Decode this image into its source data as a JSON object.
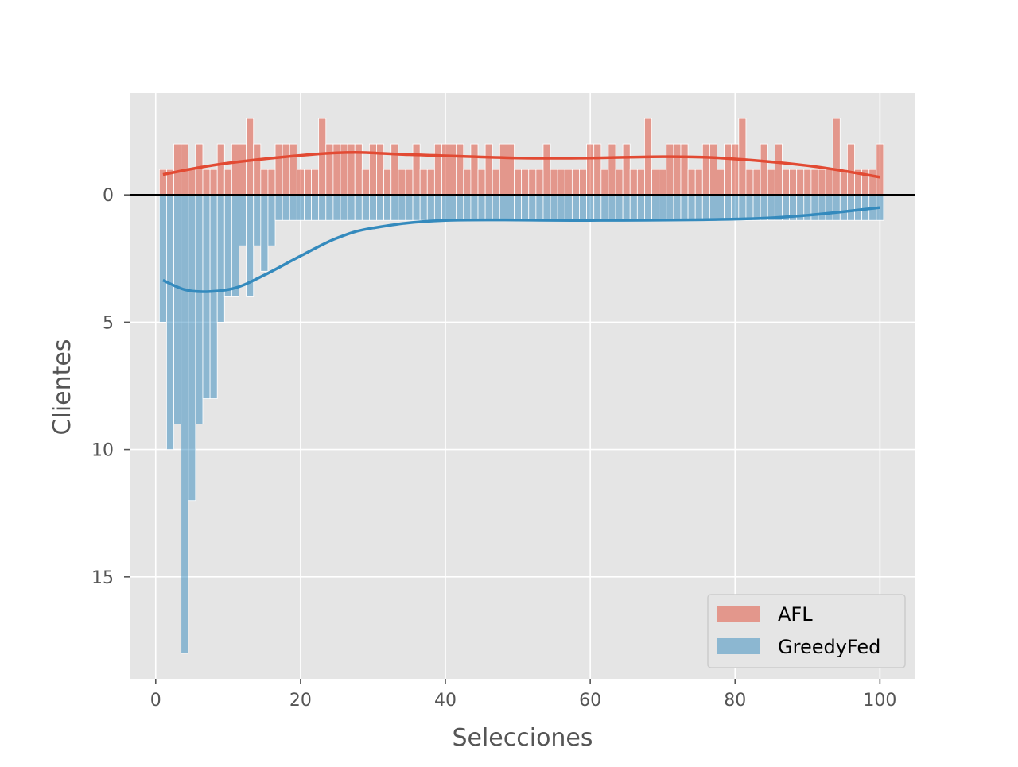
{
  "chart_data": {
    "type": "bar",
    "xlabel": "Selecciones",
    "ylabel": "Clientes",
    "xlim": [
      -3.6,
      104.9
    ],
    "ylim": [
      19.0,
      -4.0
    ],
    "xticks": [
      0,
      20,
      40,
      60,
      80,
      100
    ],
    "yticks": [
      0,
      5,
      10,
      15
    ],
    "tick_labels_x": [
      "0",
      "20",
      "40",
      "60",
      "80",
      "100"
    ],
    "tick_labels_y": [
      "0",
      "5",
      "10",
      "15"
    ],
    "grid": true,
    "legend": "bottom-right",
    "baseline": 0,
    "bin_width": 1,
    "x": [
      1,
      2,
      3,
      4,
      5,
      6,
      7,
      8,
      9,
      10,
      11,
      12,
      13,
      14,
      15,
      16,
      17,
      18,
      19,
      20,
      21,
      22,
      23,
      24,
      25,
      26,
      27,
      28,
      29,
      30,
      31,
      32,
      33,
      34,
      35,
      36,
      37,
      38,
      39,
      40,
      41,
      42,
      43,
      44,
      45,
      46,
      47,
      48,
      49,
      50,
      51,
      52,
      53,
      54,
      55,
      56,
      57,
      58,
      59,
      60,
      61,
      62,
      63,
      64,
      65,
      66,
      67,
      68,
      69,
      70,
      71,
      72,
      73,
      74,
      75,
      76,
      77,
      78,
      79,
      80,
      81,
      82,
      83,
      84,
      85,
      86,
      87,
      88,
      89,
      90,
      91,
      92,
      93,
      94,
      95,
      96,
      97,
      98,
      99,
      100
    ],
    "series": [
      {
        "name": "AFL",
        "direction": "up",
        "color": "#E24A33",
        "values": [
          1,
          1,
          2,
          2,
          1,
          2,
          1,
          1,
          2,
          1,
          2,
          2,
          3,
          2,
          1,
          1,
          2,
          2,
          2,
          1,
          1,
          1,
          3,
          2,
          2,
          2,
          2,
          2,
          1,
          2,
          2,
          1,
          2,
          1,
          1,
          2,
          1,
          1,
          2,
          2,
          2,
          2,
          1,
          2,
          1,
          2,
          1,
          2,
          2,
          1,
          1,
          1,
          1,
          2,
          1,
          1,
          1,
          1,
          1,
          2,
          2,
          1,
          2,
          1,
          2,
          1,
          1,
          3,
          1,
          1,
          2,
          2,
          2,
          1,
          1,
          2,
          2,
          1,
          2,
          2,
          3,
          1,
          1,
          2,
          1,
          2,
          1,
          1,
          1,
          1,
          1,
          1,
          1,
          3,
          1,
          2,
          1,
          1,
          1,
          2
        ],
        "kde": [
          [
            1,
            0.8
          ],
          [
            10,
            1.25
          ],
          [
            25,
            1.65
          ],
          [
            35,
            1.58
          ],
          [
            50,
            1.45
          ],
          [
            60,
            1.45
          ],
          [
            70,
            1.5
          ],
          [
            78,
            1.45
          ],
          [
            90,
            1.15
          ],
          [
            100,
            0.7
          ]
        ]
      },
      {
        "name": "GreedyFed",
        "direction": "down",
        "color": "#348ABD",
        "values": [
          5,
          10,
          9,
          18,
          12,
          9,
          8,
          8,
          5,
          4,
          4,
          2,
          4,
          2,
          3,
          2,
          1,
          1,
          1,
          1,
          1,
          1,
          1,
          1,
          1,
          1,
          1,
          1,
          1,
          1,
          1,
          1,
          1,
          1,
          1,
          1,
          1,
          1,
          1,
          1,
          1,
          1,
          1,
          1,
          1,
          1,
          1,
          1,
          1,
          1,
          1,
          1,
          1,
          1,
          1,
          1,
          1,
          1,
          1,
          1,
          1,
          1,
          1,
          1,
          1,
          1,
          1,
          1,
          1,
          1,
          1,
          1,
          1,
          1,
          1,
          1,
          1,
          1,
          1,
          1,
          1,
          1,
          1,
          1,
          1,
          1,
          1,
          1,
          1,
          1,
          1,
          1,
          1,
          1,
          1,
          1,
          1,
          1,
          1,
          1
        ],
        "kde": [
          [
            1,
            3.35
          ],
          [
            4,
            3.72
          ],
          [
            7,
            3.8
          ],
          [
            11,
            3.65
          ],
          [
            15,
            3.15
          ],
          [
            20,
            2.4
          ],
          [
            25,
            1.7
          ],
          [
            30,
            1.3
          ],
          [
            40,
            1.0
          ],
          [
            60,
            1.0
          ],
          [
            80,
            0.95
          ],
          [
            90,
            0.8
          ],
          [
            100,
            0.5
          ]
        ]
      }
    ]
  }
}
